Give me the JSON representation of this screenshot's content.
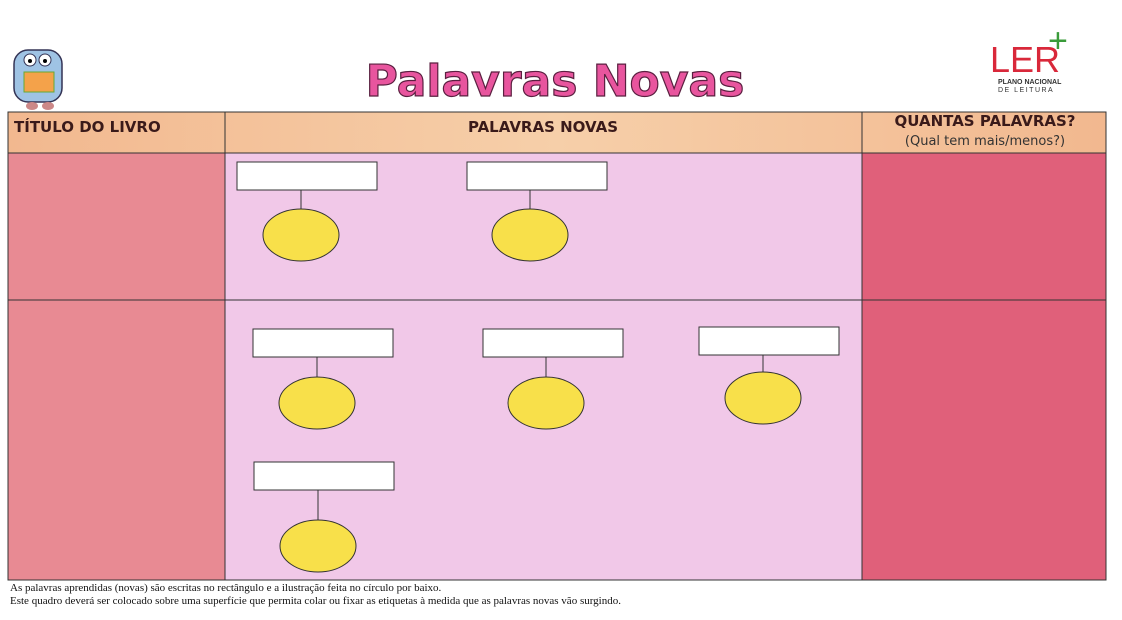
{
  "header": {
    "title": "Palavras Novas",
    "logo": {
      "name": "LER",
      "plus": "+",
      "line1": "PLANO NACIONAL",
      "line2": "DE LEITURA"
    }
  },
  "table": {
    "columns": [
      "TÍTULO DO LIVRO",
      "PALAVRAS NOVAS",
      "QUANTAS PALAVRAS?"
    ],
    "column_note": "(Qual tem mais/menos?)"
  },
  "footer": [
    "As palavras aprendidas (novas) são escritas no rectângulo e a ilustração feita no círculo por baixo.",
    "Este quadro deverá ser colocado sobre uma superfície que permita colar ou fixar as etiquetas à medida que as palavras novas vão surgindo."
  ]
}
